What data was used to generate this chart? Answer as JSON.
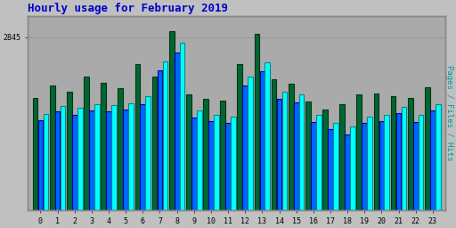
{
  "title": "Hourly usage for February 2019",
  "title_color": "#0000cc",
  "ylabel_right": "Pages / Files / Hits",
  "hours": [
    0,
    1,
    2,
    3,
    4,
    5,
    6,
    7,
    8,
    9,
    10,
    11,
    12,
    13,
    14,
    15,
    16,
    17,
    18,
    19,
    20,
    21,
    22,
    23
  ],
  "hits": [
    1580,
    1720,
    1680,
    1750,
    1730,
    1760,
    1880,
    2450,
    2750,
    1640,
    1560,
    1540,
    2200,
    2430,
    1950,
    1900,
    1560,
    1440,
    1370,
    1540,
    1570,
    1700,
    1560,
    1750
  ],
  "files": [
    1480,
    1620,
    1560,
    1640,
    1620,
    1650,
    1750,
    2300,
    2600,
    1530,
    1460,
    1440,
    2050,
    2280,
    1830,
    1770,
    1450,
    1330,
    1250,
    1430,
    1460,
    1590,
    1450,
    1640
  ],
  "pages": [
    1850,
    2050,
    1950,
    2200,
    2100,
    2000,
    2400,
    2200,
    2950,
    1900,
    1830,
    1800,
    2400,
    2900,
    2150,
    2080,
    1790,
    1660,
    1750,
    1900,
    1920,
    1870,
    1850,
    2020
  ],
  "hits_color": "#00ffff",
  "hits_edge": "#008888",
  "files_color": "#0066ff",
  "files_edge": "#0000aa",
  "pages_color": "#006633",
  "pages_edge": "#003311",
  "bg_color": "#c0c0c0",
  "plot_bg": "#aaaaaa",
  "ylim_max": 3200,
  "ytick_val": 2845,
  "ytick_label": "2845",
  "bar_width": 0.3,
  "figsize": [
    5.12,
    2.56
  ],
  "dpi": 100
}
